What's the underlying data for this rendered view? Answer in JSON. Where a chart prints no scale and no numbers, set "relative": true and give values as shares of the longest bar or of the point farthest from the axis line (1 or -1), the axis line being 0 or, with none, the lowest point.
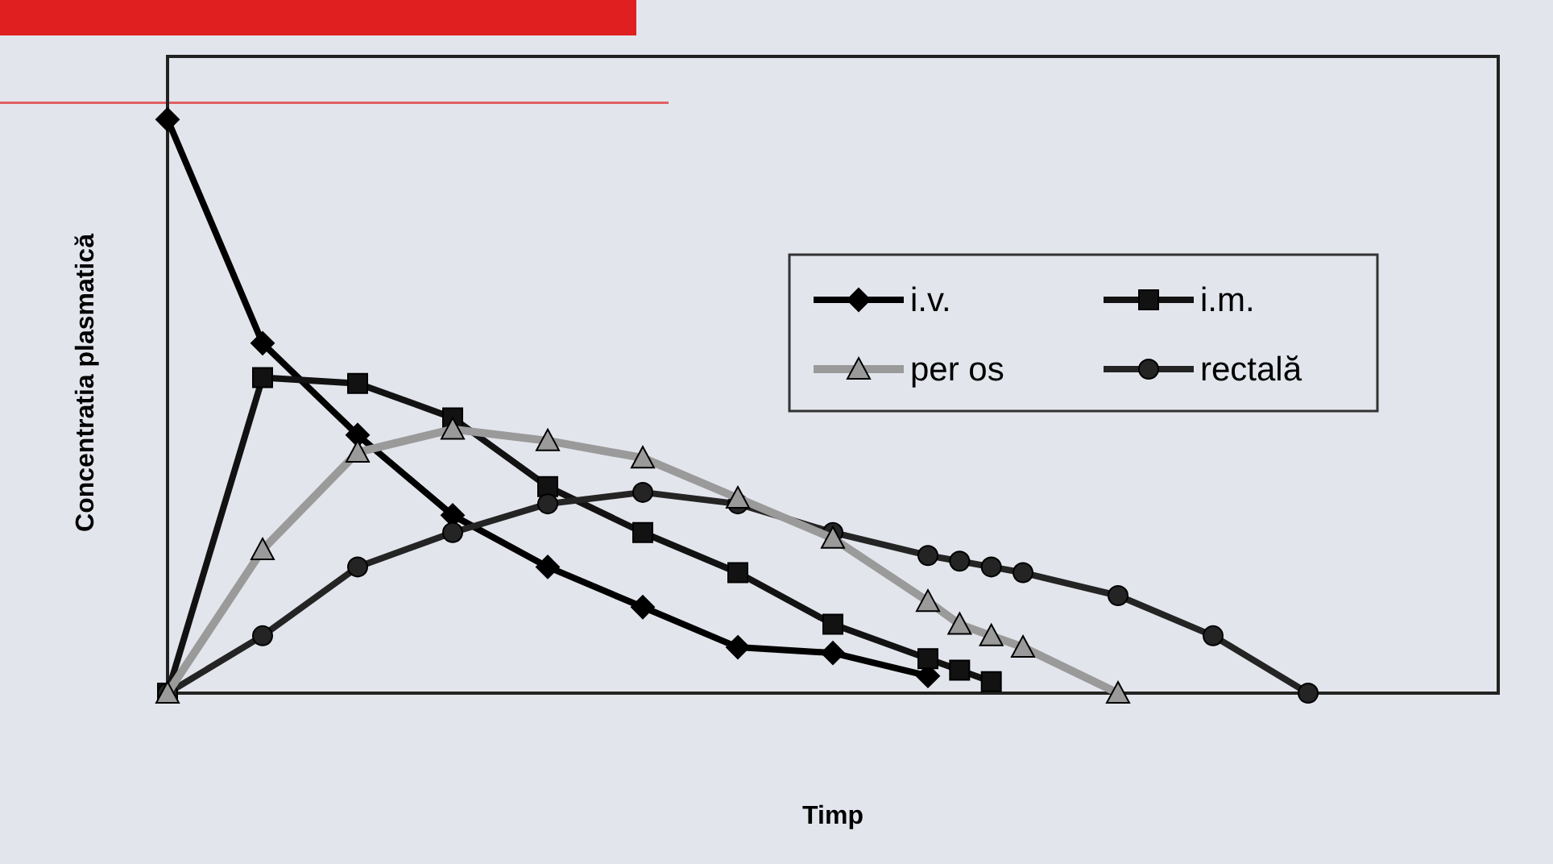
{
  "chart_data": {
    "type": "line",
    "relative": true,
    "xlabel": "Timp",
    "ylabel": "Concentratia plasmatică",
    "categories": [
      null,
      null,
      null,
      null,
      null,
      null,
      null,
      null,
      null,
      null,
      null,
      null,
      null,
      null,
      null,
      null,
      null,
      null,
      null,
      null,
      null,
      null,
      null,
      null,
      null,
      null,
      null,
      null,
      null,
      null,
      null,
      null,
      null,
      null,
      null,
      null,
      null,
      null,
      null,
      null,
      null,
      null,
      null
    ],
    "grid": false,
    "legend": "top right",
    "line_style": "solid",
    "series": [
      {
        "name": "i.v.",
        "color": "#000000",
        "marker": "diamond",
        "values": [
          1,
          null,
          null,
          0.61,
          null,
          null,
          0.45,
          null,
          null,
          0.31,
          null,
          null,
          0.22,
          null,
          null,
          0.15,
          null,
          null,
          0.08,
          null,
          null,
          0.07,
          null,
          null,
          0.03,
          null,
          null,
          null,
          null,
          null,
          null,
          null,
          null,
          null,
          null,
          null,
          null,
          null,
          null,
          null,
          null,
          null,
          null
        ]
      },
      {
        "name": "i.m.",
        "color": "#121212",
        "marker": "square",
        "values": [
          0,
          null,
          null,
          0.55,
          null,
          null,
          0.54,
          null,
          null,
          0.48,
          null,
          null,
          0.36,
          null,
          null,
          0.28,
          null,
          null,
          0.21,
          null,
          null,
          0.12,
          null,
          null,
          0.06,
          0.04,
          0.02,
          null,
          null,
          null,
          null,
          null,
          null,
          null,
          null,
          null,
          null,
          null,
          null,
          null,
          null,
          null,
          null
        ]
      },
      {
        "name": "per os",
        "color": "#9a9a9a",
        "marker": "triangle",
        "values": [
          0,
          null,
          null,
          0.25,
          null,
          null,
          0.42,
          null,
          null,
          0.46,
          null,
          null,
          0.44,
          null,
          null,
          0.41,
          null,
          null,
          0.34,
          null,
          null,
          0.27,
          null,
          null,
          0.16,
          0.12,
          0.1,
          0.08,
          null,
          null,
          0,
          null,
          null,
          null,
          null,
          null,
          null,
          null,
          null,
          null,
          null,
          null,
          null
        ]
      },
      {
        "name": "rectală",
        "color": "#242424",
        "marker": "circle",
        "values": [
          0,
          null,
          null,
          0.1,
          null,
          null,
          0.22,
          null,
          null,
          0.28,
          null,
          null,
          0.33,
          null,
          null,
          0.35,
          null,
          null,
          0.33,
          null,
          null,
          0.28,
          null,
          null,
          0.24,
          0.23,
          0.22,
          0.21,
          null,
          null,
          0.17,
          null,
          null,
          0.1,
          null,
          null,
          0,
          null,
          null,
          null,
          null,
          null,
          null
        ]
      }
    ]
  }
}
